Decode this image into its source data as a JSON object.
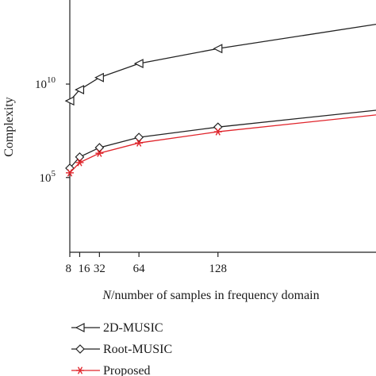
{
  "chart_data": {
    "type": "line",
    "xlabel_italic": "N",
    "xlabel_rest": "/number of samples in frequency domain",
    "ylabel": "Complexity",
    "x_scale": "linear",
    "y_scale": "log",
    "xlim": [
      8,
      256
    ],
    "ylim_log10": [
      1,
      14.5
    ],
    "x_tick_labels": [
      "8",
      "16",
      "32",
      "64",
      "128"
    ],
    "x_tick_values": [
      8,
      16,
      32,
      64,
      128
    ],
    "y_tick_base": "10",
    "y_tick_exponents": [
      "5",
      "10"
    ],
    "y_tick_log_values": [
      5,
      10
    ],
    "legend_position": "bottom-left",
    "series": [
      {
        "name": "2D-MUSIC",
        "color": "#222222",
        "marker": "triangle-left",
        "x": [
          8,
          16,
          32,
          64,
          128,
          256
        ],
        "log10_y": [
          9.1,
          9.7,
          10.35,
          11.1,
          11.9,
          13.2
        ]
      },
      {
        "name": "Root-MUSIC",
        "color": "#222222",
        "marker": "diamond",
        "x": [
          8,
          16,
          32,
          64,
          128,
          256
        ],
        "log10_y": [
          5.5,
          6.1,
          6.6,
          7.15,
          7.7,
          8.6
        ]
      },
      {
        "name": "Proposed",
        "color": "#e0242b",
        "marker": "asterisk",
        "x": [
          8,
          16,
          32,
          64,
          128,
          256
        ],
        "log10_y": [
          5.25,
          5.8,
          6.3,
          6.85,
          7.45,
          8.35
        ]
      }
    ]
  }
}
